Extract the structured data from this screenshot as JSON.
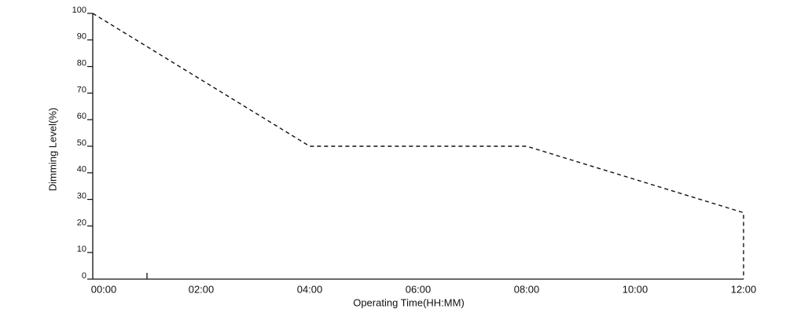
{
  "chart_data": {
    "type": "line",
    "y_label": "Dimming Level(%)",
    "x_label": "Operating Time(HH:MM)",
    "x": [
      0,
      4,
      8,
      12,
      12
    ],
    "series": [
      {
        "values": [
          100,
          50,
          50,
          25,
          0
        ],
        "color": "#111111"
      }
    ],
    "xlim": [
      0,
      12
    ],
    "xticks": [
      {
        "value": 0,
        "label": "00:00"
      },
      {
        "value": 2,
        "label": "02:00"
      },
      {
        "value": 4,
        "label": "04:00"
      },
      {
        "value": 6,
        "label": "06:00"
      },
      {
        "value": 8,
        "label": "08:00"
      },
      {
        "value": 10,
        "label": "10:00"
      },
      {
        "value": 12,
        "label": "12:00"
      }
    ],
    "ylim": [
      0,
      100
    ],
    "yticks": [
      0,
      10,
      20,
      30,
      40,
      50,
      60,
      70,
      80,
      90,
      100
    ],
    "dashed": true
  }
}
